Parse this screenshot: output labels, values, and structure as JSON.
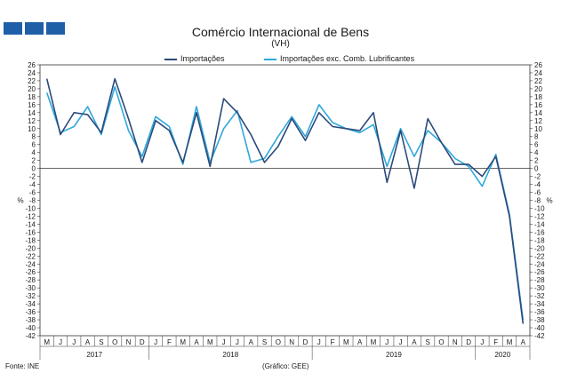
{
  "header": {
    "title": "Comércio Internacional de Bens",
    "subtitle": "(VH)"
  },
  "footer": {
    "source": "Fonte: INE",
    "credit": "(Gráfico: GEE)"
  },
  "colors": {
    "logo": "#1f5fa8",
    "series1": "#2b4a7a",
    "series2": "#2fa8dc",
    "axis": "#333333"
  },
  "chart_data": {
    "type": "line",
    "title": "Comércio Internacional de Bens",
    "subtitle": "(VH)",
    "ylabel_left": "%",
    "ylabel_right": "%",
    "ylim": [
      -42,
      26
    ],
    "ytick_step": 2,
    "months": [
      "M",
      "J",
      "J",
      "A",
      "S",
      "O",
      "N",
      "D",
      "J",
      "F",
      "M",
      "A",
      "M",
      "J",
      "J",
      "A",
      "S",
      "O",
      "N",
      "D",
      "J",
      "F",
      "M",
      "A",
      "M",
      "J",
      "J",
      "A",
      "S",
      "O",
      "N",
      "D",
      "J",
      "F",
      "M",
      "A"
    ],
    "years": [
      {
        "label": "2017",
        "start": 0,
        "end": 7
      },
      {
        "label": "2018",
        "start": 8,
        "end": 19
      },
      {
        "label": "2019",
        "start": 20,
        "end": 31
      },
      {
        "label": "2020",
        "start": 32,
        "end": 35
      }
    ],
    "legend_position": "top-center",
    "series": [
      {
        "name": "Importações",
        "values": [
          22.5,
          8.5,
          14.0,
          13.5,
          9.0,
          22.5,
          12.5,
          1.5,
          12.0,
          9.5,
          1.5,
          14.0,
          0.5,
          17.5,
          14.0,
          8.5,
          1.5,
          5.5,
          12.5,
          7.0,
          14.0,
          10.5,
          10.0,
          9.5,
          14.0,
          -3.5,
          9.5,
          -5.0,
          12.5,
          6.5,
          1.0,
          1.0,
          -2.0,
          3.0,
          -12.0,
          -39.0
        ]
      },
      {
        "name": "Importações exc. Comb. Lubrificantes",
        "values": [
          19.0,
          9.0,
          10.5,
          15.5,
          8.5,
          20.5,
          9.5,
          3.0,
          13.0,
          10.5,
          1.0,
          15.5,
          1.5,
          10.0,
          14.5,
          1.5,
          2.5,
          8.0,
          13.0,
          8.0,
          16.0,
          11.5,
          10.0,
          9.0,
          11.0,
          0.5,
          10.0,
          3.0,
          9.5,
          6.5,
          2.5,
          0.5,
          -4.5,
          3.5,
          -11.5,
          -38.0
        ]
      }
    ]
  }
}
